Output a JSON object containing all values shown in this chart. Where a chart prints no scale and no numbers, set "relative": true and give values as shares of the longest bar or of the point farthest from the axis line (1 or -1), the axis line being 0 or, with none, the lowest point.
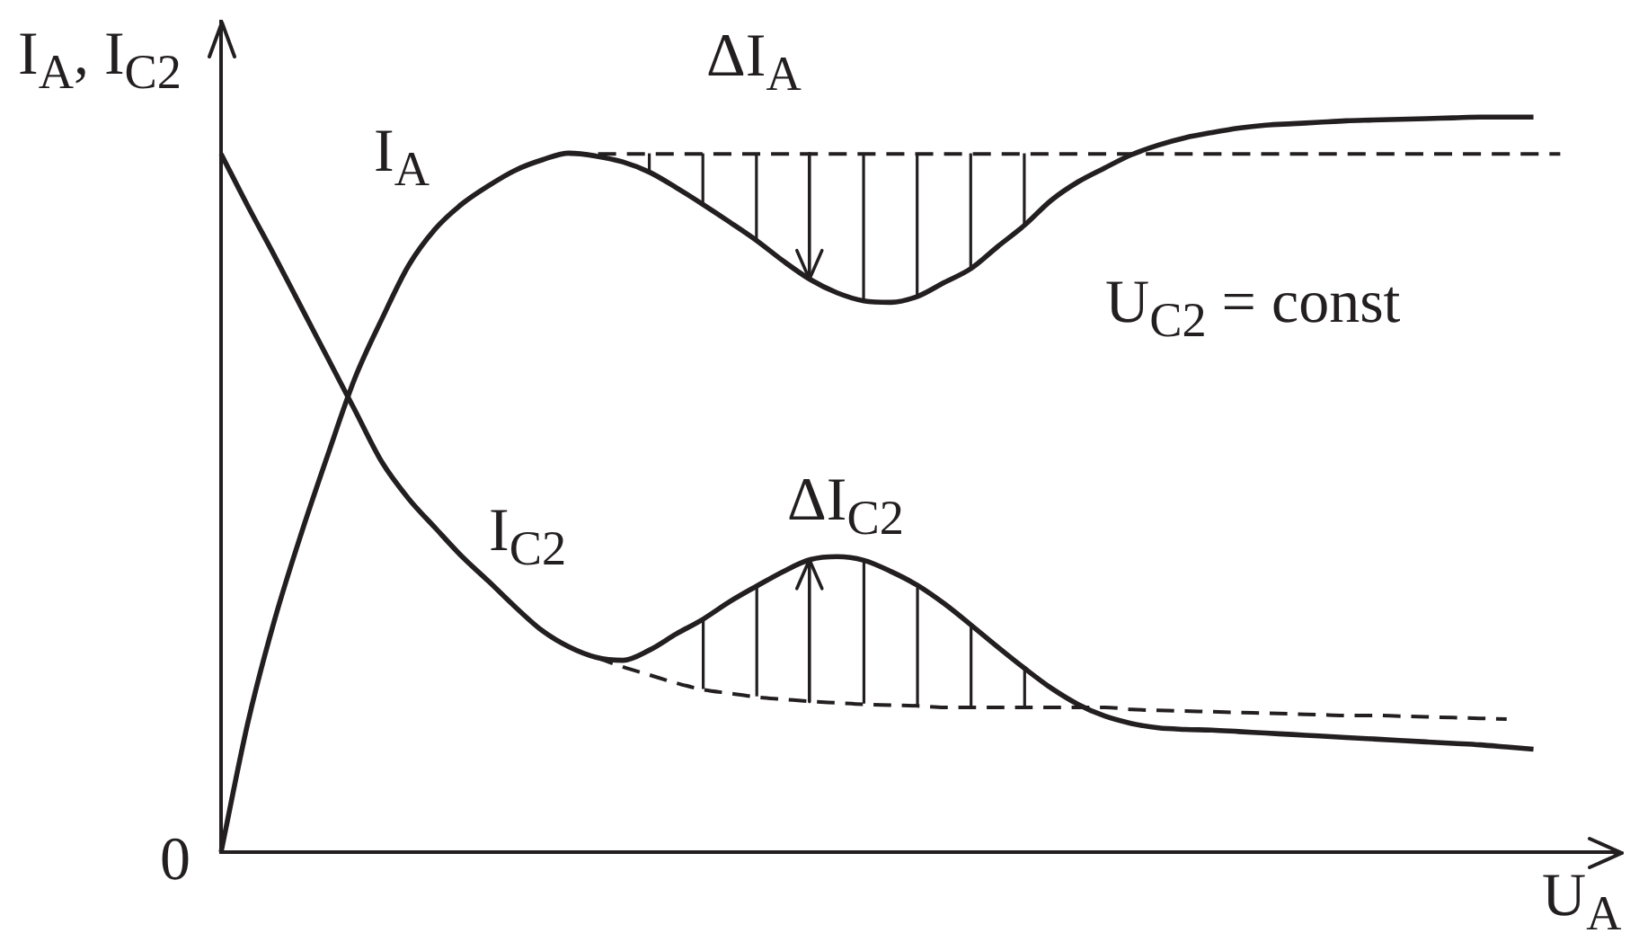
{
  "chart_data": {
    "type": "line",
    "relative": true,
    "xlabel": "U$_{A}$",
    "ylabel": "I$_{A}$, I$_{C2}$",
    "annotations": [
      "ΔI$_{A}$",
      "ΔI$_{C2}$",
      "U$_{C2}$ = const",
      "0"
    ],
    "categories": [
      null,
      null,
      null,
      null,
      null,
      null,
      null,
      null,
      null,
      null,
      null,
      null,
      null,
      null,
      null,
      null,
      null,
      null,
      null,
      null,
      null,
      null,
      null,
      null,
      null,
      null,
      null,
      null,
      null,
      null,
      null,
      null,
      null,
      null,
      null,
      null,
      null,
      null,
      null,
      null,
      null,
      null,
      null,
      null,
      null,
      null,
      null,
      null,
      null,
      null,
      null,
      null,
      null
    ],
    "series": [
      {
        "name": "I$_{A}$",
        "color": "#231f20",
        "values": [
          0,
          0.176,
          0.316,
          0.434,
          0.542,
          0.645,
          0.725,
          0.798,
          0.848,
          0.882,
          0.907,
          0.928,
          0.942,
          0.951,
          0.947,
          0.939,
          0.925,
          0.904,
          0.881,
          0.857,
          0.832,
          0.804,
          0.779,
          0.761,
          0.75,
          0.748,
          0.756,
          0.775,
          0.794,
          0.824,
          0.853,
          0.887,
          0.912,
          0.931,
          0.949,
          0.962,
          0.972,
          0.979,
          0.985,
          0.989,
          0.991,
          0.993,
          0.995,
          0.996,
          0.997,
          0.998,
          0.999,
          1,
          1,
          1,
          null,
          null,
          null
        ]
      },
      {
        "color": "#231f20",
        "line_style": "dashed",
        "values": [
          null,
          null,
          null,
          null,
          null,
          null,
          null,
          null,
          null,
          null,
          null,
          null,
          null,
          0.95,
          0.95,
          0.95,
          0.95,
          0.95,
          0.95,
          0.95,
          0.95,
          0.95,
          0.95,
          0.95,
          0.95,
          0.95,
          0.95,
          0.95,
          0.95,
          0.95,
          0.95,
          0.95,
          0.95,
          0.95,
          0.95,
          0.95,
          0.95,
          0.95,
          0.95,
          0.95,
          0.95,
          0.95,
          0.95,
          0.95,
          0.95,
          0.95,
          0.95,
          0.95,
          0.95,
          0.95,
          0.95,
          null,
          null
        ]
      },
      {
        "name": "I$_{C2}$",
        "color": "#231f20",
        "values": [
          0.95,
          0.879,
          0.811,
          0.741,
          0.671,
          0.601,
          0.531,
          0.481,
          0.441,
          0.402,
          0.368,
          0.333,
          0.301,
          0.279,
          0.265,
          0.261,
          0.275,
          0.297,
          0.317,
          0.341,
          0.362,
          0.382,
          0.398,
          0.402,
          0.397,
          0.382,
          0.363,
          0.338,
          0.309,
          0.279,
          0.25,
          0.223,
          0.201,
          0.185,
          0.175,
          0.169,
          0.167,
          0.166,
          0.164,
          0.162,
          0.16,
          0.158,
          0.156,
          0.154,
          0.152,
          0.15,
          0.148,
          0.146,
          0.143,
          0.14,
          null,
          null,
          null
        ]
      },
      {
        "color": "#231f20",
        "line_style": "dashed",
        "values": [
          null,
          null,
          null,
          null,
          null,
          null,
          null,
          null,
          null,
          null,
          null,
          null,
          null,
          null,
          0.265,
          0.252,
          0.241,
          0.23,
          0.221,
          0.216,
          0.211,
          0.208,
          0.205,
          0.203,
          0.201,
          0.2,
          0.199,
          0.197,
          0.197,
          0.197,
          0.197,
          0.197,
          0.197,
          0.197,
          0.194,
          0.193,
          0.192,
          0.191,
          0.19,
          0.189,
          0.188,
          0.187,
          0.186,
          0.186,
          0.185,
          0.184,
          0.183,
          0.182,
          0.181,
          null,
          null,
          null,
          null
        ]
      }
    ]
  }
}
